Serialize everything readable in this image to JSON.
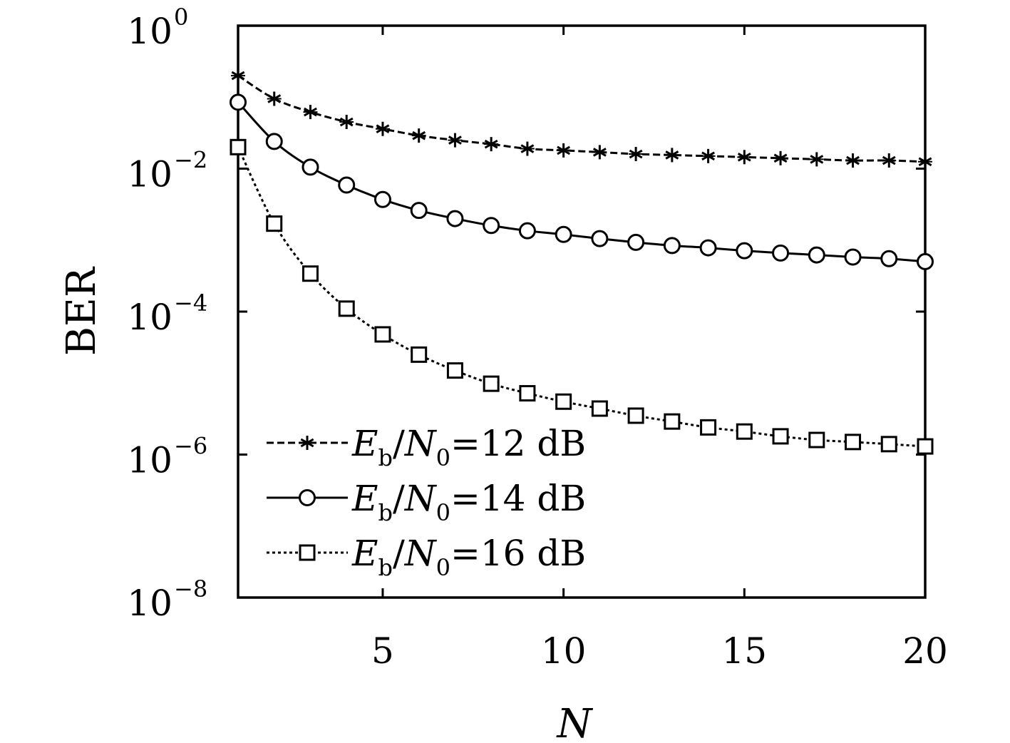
{
  "chart_data": {
    "type": "line",
    "xlabel": "N",
    "ylabel": "BER",
    "xlim": [
      1,
      20
    ],
    "ylim": [
      1e-08,
      1
    ],
    "yscale": "log",
    "x_ticks": [
      5,
      10,
      15,
      20
    ],
    "x_tick_labels": [
      "5",
      "10",
      "15",
      "20"
    ],
    "y_ticks": [
      1,
      0.01,
      0.0001,
      1e-06,
      1e-08
    ],
    "y_tick_labels": [
      {
        "base": "10",
        "exp": "0"
      },
      {
        "base": "10",
        "exp": "−2"
      },
      {
        "base": "10",
        "exp": "−4"
      },
      {
        "base": "10",
        "exp": "−6"
      },
      {
        "base": "10",
        "exp": "−8"
      }
    ],
    "grid": false,
    "legend_position": "bottom-left",
    "x": [
      1,
      2,
      3,
      4,
      5,
      6,
      7,
      8,
      9,
      10,
      11,
      12,
      13,
      14,
      15,
      16,
      17,
      18,
      19,
      20
    ],
    "series": [
      {
        "name": "Eb/N0=12 dB",
        "legend": {
          "E": "E",
          "b": "b",
          "slash": "/",
          "N": "N",
          "zero": "0",
          "rest": "=12 dB"
        },
        "marker": "star",
        "dash": "10,5",
        "values": [
          0.2,
          0.095,
          0.062,
          0.045,
          0.036,
          0.029,
          0.025,
          0.022,
          0.019,
          0.018,
          0.017,
          0.016,
          0.0155,
          0.015,
          0.0145,
          0.014,
          0.0135,
          0.013,
          0.013,
          0.0125
        ]
      },
      {
        "name": "Eb/N0=14 dB",
        "legend": {
          "E": "E",
          "b": "b",
          "slash": "/",
          "N": "N",
          "zero": "0",
          "rest": "=14 dB"
        },
        "marker": "circle",
        "dash": "",
        "values": [
          0.085,
          0.024,
          0.0105,
          0.0059,
          0.0037,
          0.0026,
          0.002,
          0.0016,
          0.00135,
          0.0012,
          0.00105,
          0.00093,
          0.00084,
          0.00078,
          0.00071,
          0.00066,
          0.00062,
          0.00058,
          0.00055,
          0.0005
        ]
      },
      {
        "name": "Eb/N0=16 dB",
        "legend": {
          "E": "E",
          "b": "b",
          "slash": "/",
          "N": "N",
          "zero": "0",
          "rest": "=16 dB"
        },
        "marker": "square",
        "dash": "4,4",
        "values": [
          0.02,
          0.0017,
          0.00034,
          0.00011,
          4.8e-05,
          2.5e-05,
          1.5e-05,
          9.8e-06,
          7.2e-06,
          5.5e-06,
          4.4e-06,
          3.5e-06,
          2.9e-06,
          2.4e-06,
          2.1e-06,
          1.8e-06,
          1.6e-06,
          1.5e-06,
          1.4e-06,
          1.3e-06
        ]
      }
    ]
  }
}
